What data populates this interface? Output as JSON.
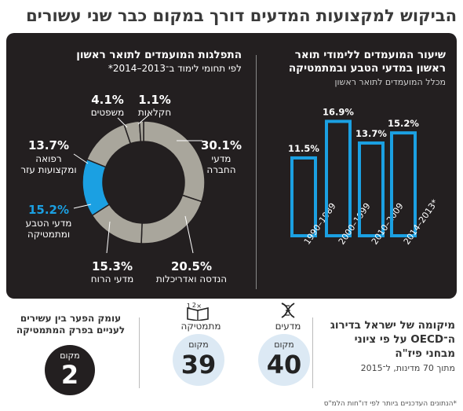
{
  "title": "הביקוש למקצועות המדעים דורך במקום כבר שני עשורים",
  "right_panel": {
    "heading_line1": "שיעור המועמדים ללימודי תואר",
    "heading_line2": "ראשון במדעי הטבע ובמתמטיקה",
    "subheading": "מכלל המועמדים לתואר ראשון"
  },
  "left_panel": {
    "heading_line1": "התפלגות המועמדים לתואר ראשון",
    "heading_line2": "לפי תחומי לימוד ב־2013–2014*"
  },
  "chart_data": [
    {
      "type": "bar",
      "categories": [
        "1989–1990",
        "1999–2000",
        "2009–2010",
        "*2013–2014"
      ],
      "values": [
        11.5,
        16.9,
        13.7,
        15.2
      ],
      "value_labels": [
        "11.5%",
        "16.9%",
        "13.7%",
        "15.2%"
      ],
      "ylim": [
        0,
        18
      ],
      "grid": false,
      "bar_color": "#1ba0e2"
    },
    {
      "type": "pie",
      "donut": true,
      "slices": [
        {
          "label": "מדעי החברה",
          "value": 30.1,
          "pct_label": "30.1%",
          "color": "#a9a69c"
        },
        {
          "label": "הנדסה ואדריכלות",
          "value": 20.5,
          "pct_label": "20.5%",
          "color": "#a9a69c"
        },
        {
          "label": "מדעי הרוח",
          "value": 15.3,
          "pct_label": "15.3%",
          "color": "#a9a69c"
        },
        {
          "label": "מדעי הטבע ומתמטיקה",
          "value": 15.2,
          "pct_label": "15.2%",
          "color": "#1ba0e2"
        },
        {
          "label": "רפואה ומקצועות עזר",
          "value": 13.7,
          "pct_label": "13.7%",
          "color": "#a9a69c"
        },
        {
          "label": "משפטים",
          "value": 4.1,
          "pct_label": "4.1%",
          "color": "#a9a69c"
        },
        {
          "label": "חקלאות",
          "value": 1.1,
          "pct_label": "1.1%",
          "color": "#a9a69c"
        }
      ]
    }
  ],
  "ranking": {
    "heading_line1": "מיקומה של ישראל בדירוג",
    "heading_line2": "ה־OECD על פי ציוני",
    "heading_line3": "מבחני פיז\"ה",
    "note": "מתוך 70 מדינות, ל־2015",
    "sciences": {
      "label": "מדעים",
      "rank_word": "מקום",
      "rank": "40",
      "icon": "dna-icon"
    },
    "math": {
      "label": "מתמטיקה",
      "rank_word": "מקום",
      "rank": "39",
      "icon": "math-book-icon"
    },
    "gap": {
      "line1": "עומק הפער בין עשירים",
      "line2": "לעניים בפרק המתמטיקה",
      "rank_word": "מקום",
      "rank": "2"
    }
  },
  "footnote": "*הנתונים העדכניים ביותר לפי דו\"חות הלמ\"ס",
  "colors": {
    "accent": "#1ba0e2",
    "dark_panel": "#231f20",
    "donut_grey": "#a9a69c",
    "light_circle": "#dce9f4"
  }
}
